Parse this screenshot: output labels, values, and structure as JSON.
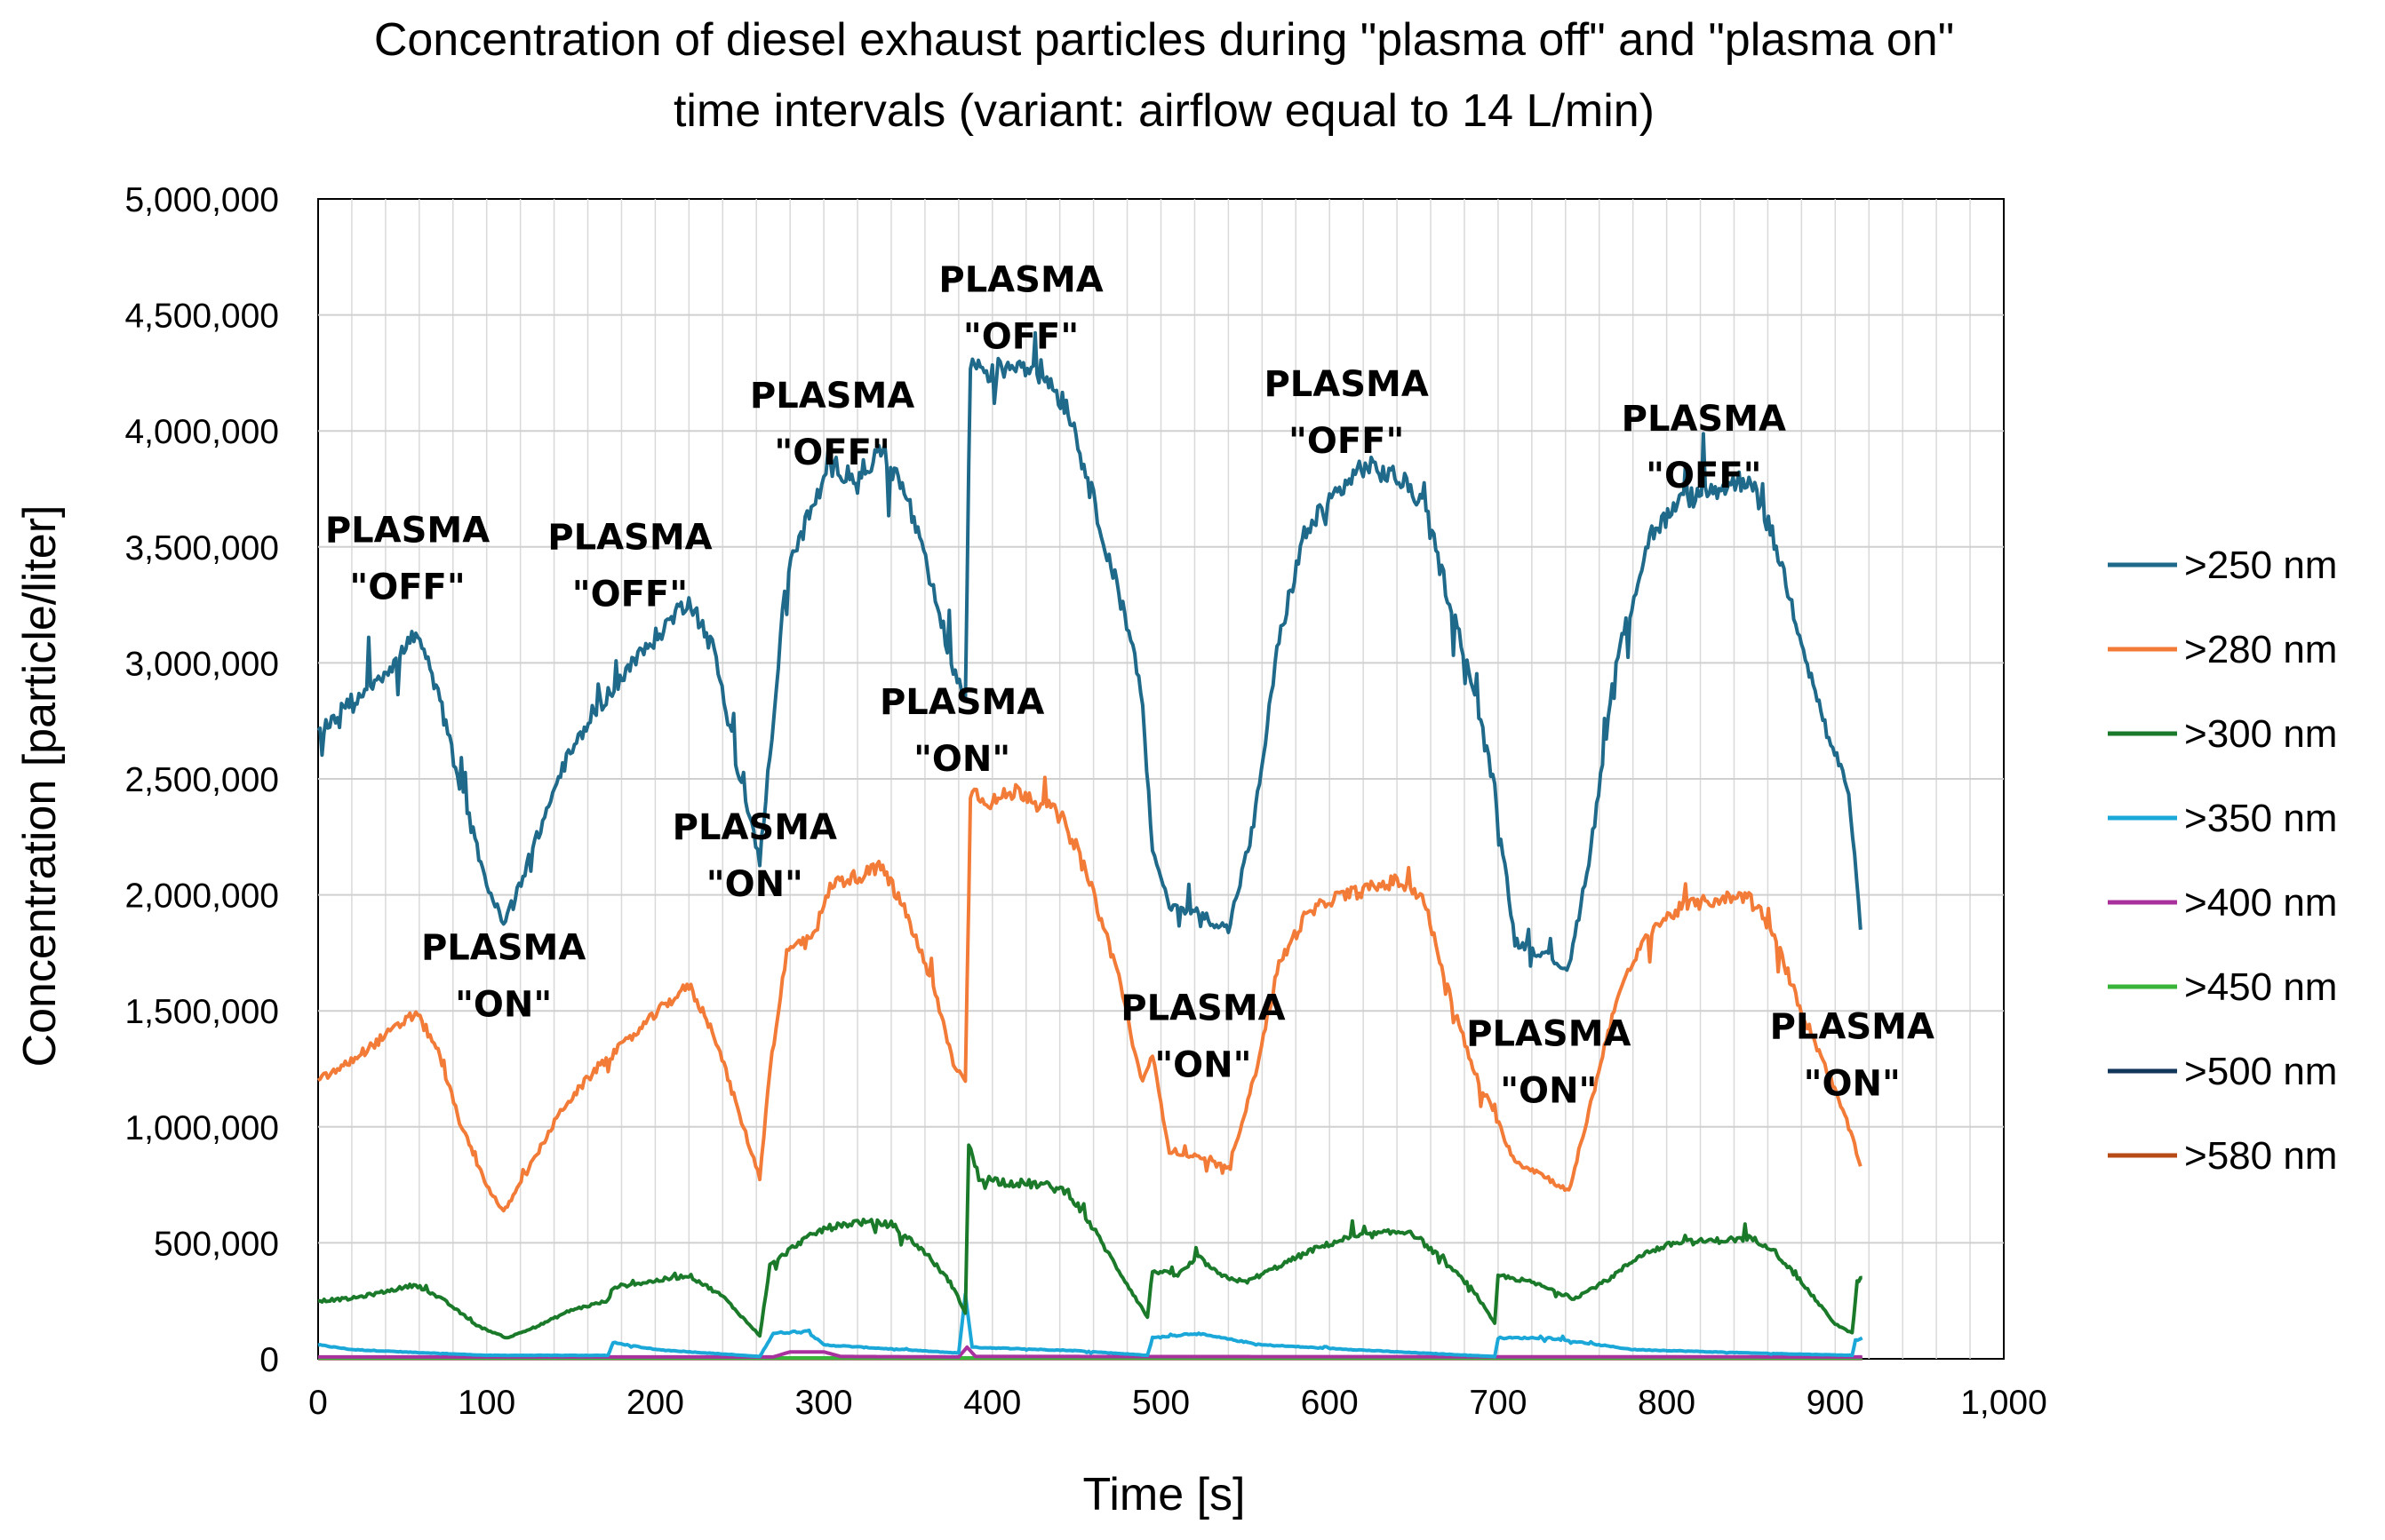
{
  "chart_data": {
    "type": "line",
    "title": "Concentration of diesel exhaust particles during \"plasma off\" and \"plasma on\" time intervals (variant: airflow equal to 14 L/min)",
    "title_lines": [
      "Concentration of diesel exhaust particles during \"plasma off\" and \"plasma on\"",
      "time intervals (variant: airflow equal to 14 L/min)"
    ],
    "xlabel": "Time [s]",
    "ylabel": "Concentration [particle/liter]",
    "xlim": [
      0,
      1000
    ],
    "ylim": [
      0,
      5000000
    ],
    "x_tick_labels": [
      "0",
      "100",
      "200",
      "300",
      "400",
      "500",
      "600",
      "700",
      "800",
      "900",
      "1,000"
    ],
    "x_ticks": [
      0,
      100,
      200,
      300,
      400,
      500,
      600,
      700,
      800,
      900,
      1000
    ],
    "y_tick_labels": [
      "0",
      "500,000",
      "1,000,000",
      "1,500,000",
      "2,000,000",
      "2,500,000",
      "3,000,000",
      "3,500,000",
      "4,000,000",
      "4,500,000",
      "5,000,000"
    ],
    "y_ticks": [
      0,
      500000,
      1000000,
      1500000,
      2000000,
      2500000,
      3000000,
      3500000,
      4000000,
      4500000,
      5000000
    ],
    "grid": true,
    "legend_position": "right",
    "series": [
      {
        "name": ">250 nm",
        "color": "#1f6a8a",
        "points": [
          [
            0,
            2700000
          ],
          [
            15,
            2800000
          ],
          [
            30,
            2900000
          ],
          [
            45,
            3000000
          ],
          [
            58,
            3130000
          ],
          [
            70,
            2900000
          ],
          [
            85,
            2450000
          ],
          [
            100,
            2050000
          ],
          [
            110,
            1870000
          ],
          [
            125,
            2150000
          ],
          [
            145,
            2550000
          ],
          [
            165,
            2800000
          ],
          [
            185,
            2980000
          ],
          [
            205,
            3150000
          ],
          [
            220,
            3280000
          ],
          [
            235,
            3050000
          ],
          [
            250,
            2500000
          ],
          [
            262,
            2150000
          ],
          [
            268,
            2600000
          ],
          [
            278,
            3400000
          ],
          [
            295,
            3700000
          ],
          [
            305,
            3850000
          ],
          [
            320,
            3800000
          ],
          [
            335,
            3920000
          ],
          [
            350,
            3700000
          ],
          [
            365,
            3300000
          ],
          [
            378,
            2950000
          ],
          [
            384,
            2850000
          ],
          [
            387,
            4300000
          ],
          [
            400,
            4250000
          ],
          [
            415,
            4300000
          ],
          [
            430,
            4250000
          ],
          [
            445,
            4100000
          ],
          [
            460,
            3700000
          ],
          [
            475,
            3300000
          ],
          [
            488,
            2900000
          ],
          [
            495,
            2200000
          ],
          [
            505,
            1950000
          ],
          [
            520,
            1930000
          ],
          [
            540,
            1850000
          ],
          [
            555,
            2300000
          ],
          [
            570,
            3100000
          ],
          [
            585,
            3550000
          ],
          [
            600,
            3700000
          ],
          [
            620,
            3850000
          ],
          [
            640,
            3800000
          ],
          [
            655,
            3700000
          ],
          [
            670,
            3300000
          ],
          [
            685,
            2900000
          ],
          [
            698,
            2450000
          ],
          [
            710,
            1800000
          ],
          [
            725,
            1750000
          ],
          [
            742,
            1680000
          ],
          [
            755,
            2200000
          ],
          [
            770,
            3000000
          ],
          [
            790,
            3550000
          ],
          [
            810,
            3700000
          ],
          [
            830,
            3750000
          ],
          [
            850,
            3800000
          ],
          [
            865,
            3500000
          ],
          [
            880,
            3100000
          ],
          [
            895,
            2700000
          ],
          [
            908,
            2450000
          ],
          [
            915,
            1850000
          ]
        ]
      },
      {
        "name": ">280 nm",
        "color": "#f37b38",
        "points": [
          [
            0,
            1200000
          ],
          [
            15,
            1260000
          ],
          [
            30,
            1340000
          ],
          [
            45,
            1420000
          ],
          [
            58,
            1490000
          ],
          [
            70,
            1350000
          ],
          [
            85,
            1000000
          ],
          [
            100,
            750000
          ],
          [
            110,
            630000
          ],
          [
            125,
            820000
          ],
          [
            145,
            1080000
          ],
          [
            165,
            1250000
          ],
          [
            185,
            1380000
          ],
          [
            205,
            1520000
          ],
          [
            220,
            1610000
          ],
          [
            235,
            1400000
          ],
          [
            250,
            1050000
          ],
          [
            262,
            780000
          ],
          [
            268,
            1250000
          ],
          [
            278,
            1750000
          ],
          [
            295,
            1850000
          ],
          [
            305,
            2050000
          ],
          [
            320,
            2080000
          ],
          [
            335,
            2120000
          ],
          [
            350,
            1900000
          ],
          [
            365,
            1600000
          ],
          [
            378,
            1250000
          ],
          [
            384,
            1200000
          ],
          [
            387,
            2450000
          ],
          [
            400,
            2400000
          ],
          [
            415,
            2450000
          ],
          [
            430,
            2400000
          ],
          [
            445,
            2300000
          ],
          [
            460,
            2000000
          ],
          [
            475,
            1650000
          ],
          [
            488,
            1200000
          ],
          [
            495,
            1300000
          ],
          [
            505,
            900000
          ],
          [
            520,
            870000
          ],
          [
            540,
            820000
          ],
          [
            555,
            1200000
          ],
          [
            570,
            1700000
          ],
          [
            585,
            1900000
          ],
          [
            600,
            1980000
          ],
          [
            620,
            2020000
          ],
          [
            640,
            2060000
          ],
          [
            655,
            2000000
          ],
          [
            670,
            1600000
          ],
          [
            685,
            1250000
          ],
          [
            698,
            1050000
          ],
          [
            710,
            850000
          ],
          [
            725,
            800000
          ],
          [
            742,
            720000
          ],
          [
            755,
            1100000
          ],
          [
            770,
            1550000
          ],
          [
            790,
            1850000
          ],
          [
            810,
            1950000
          ],
          [
            830,
            1980000
          ],
          [
            850,
            2000000
          ],
          [
            865,
            1800000
          ],
          [
            880,
            1500000
          ],
          [
            895,
            1250000
          ],
          [
            908,
            1000000
          ],
          [
            915,
            830000
          ]
        ]
      },
      {
        "name": ">300 nm",
        "color": "#1a7a2a",
        "points": [
          [
            0,
            250000
          ],
          [
            20,
            260000
          ],
          [
            40,
            290000
          ],
          [
            58,
            320000
          ],
          [
            75,
            250000
          ],
          [
            95,
            140000
          ],
          [
            112,
            90000
          ],
          [
            130,
            140000
          ],
          [
            150,
            210000
          ],
          [
            172,
            250000
          ],
          [
            175,
            310000
          ],
          [
            195,
            330000
          ],
          [
            220,
            360000
          ],
          [
            240,
            270000
          ],
          [
            258,
            130000
          ],
          [
            262,
            100000
          ],
          [
            268,
            400000
          ],
          [
            285,
            500000
          ],
          [
            300,
            560000
          ],
          [
            320,
            590000
          ],
          [
            340,
            580000
          ],
          [
            360,
            460000
          ],
          [
            375,
            330000
          ],
          [
            384,
            200000
          ],
          [
            386,
            920000
          ],
          [
            392,
            780000
          ],
          [
            410,
            760000
          ],
          [
            430,
            750000
          ],
          [
            445,
            720000
          ],
          [
            460,
            560000
          ],
          [
            475,
            380000
          ],
          [
            492,
            180000
          ],
          [
            495,
            380000
          ],
          [
            510,
            360000
          ],
          [
            522,
            440000
          ],
          [
            535,
            360000
          ],
          [
            550,
            330000
          ],
          [
            570,
            400000
          ],
          [
            590,
            470000
          ],
          [
            610,
            520000
          ],
          [
            630,
            540000
          ],
          [
            648,
            550000
          ],
          [
            665,
            440000
          ],
          [
            685,
            300000
          ],
          [
            698,
            150000
          ],
          [
            700,
            360000
          ],
          [
            720,
            330000
          ],
          [
            745,
            260000
          ],
          [
            765,
            340000
          ],
          [
            785,
            450000
          ],
          [
            805,
            500000
          ],
          [
            830,
            510000
          ],
          [
            850,
            520000
          ],
          [
            862,
            480000
          ],
          [
            880,
            330000
          ],
          [
            900,
            150000
          ],
          [
            910,
            110000
          ],
          [
            913,
            330000
          ],
          [
            916,
            350000
          ]
        ]
      },
      {
        "name": ">350 nm",
        "color": "#1ba8d9",
        "points": [
          [
            0,
            60000
          ],
          [
            20,
            40000
          ],
          [
            50,
            30000
          ],
          [
            100,
            15000
          ],
          [
            172,
            15000
          ],
          [
            175,
            70000
          ],
          [
            200,
            40000
          ],
          [
            262,
            10000
          ],
          [
            270,
            110000
          ],
          [
            290,
            120000
          ],
          [
            300,
            60000
          ],
          [
            380,
            25000
          ],
          [
            384,
            280000
          ],
          [
            388,
            50000
          ],
          [
            450,
            35000
          ],
          [
            492,
            15000
          ],
          [
            495,
            90000
          ],
          [
            520,
            110000
          ],
          [
            560,
            60000
          ],
          [
            640,
            30000
          ],
          [
            698,
            10000
          ],
          [
            700,
            90000
          ],
          [
            730,
            90000
          ],
          [
            780,
            40000
          ],
          [
            850,
            25000
          ],
          [
            910,
            15000
          ],
          [
            912,
            80000
          ],
          [
            916,
            90000
          ]
        ]
      },
      {
        "name": ">400 nm",
        "color": "#a8319e",
        "points": [
          [
            0,
            8000
          ],
          [
            270,
            8000
          ],
          [
            280,
            30000
          ],
          [
            300,
            30000
          ],
          [
            310,
            10000
          ],
          [
            380,
            8000
          ],
          [
            385,
            50000
          ],
          [
            390,
            10000
          ],
          [
            916,
            8000
          ]
        ]
      },
      {
        "name": ">450 nm",
        "color": "#38b538",
        "points": [
          [
            0,
            4000
          ],
          [
            916,
            4000
          ]
        ]
      },
      {
        "name": ">500 nm",
        "color": "#12355a",
        "points": [
          [
            0,
            2500
          ],
          [
            916,
            2500
          ]
        ]
      },
      {
        "name": ">580 nm",
        "color": "#b84a15",
        "points": [
          [
            0,
            1500
          ],
          [
            916,
            1500
          ]
        ]
      }
    ],
    "annotations": [
      {
        "line1": "PLASMA",
        "line2": "\"OFF\"",
        "x": 53,
        "y": 3520000
      },
      {
        "line1": "PLASMA",
        "line2": "\"OFF\"",
        "x": 185,
        "y": 3490000
      },
      {
        "line1": "PLASMA",
        "line2": "\"OFF\"",
        "x": 305,
        "y": 4100000
      },
      {
        "line1": "PLASMA",
        "line2": "\"OFF\"",
        "x": 417,
        "y": 4600000
      },
      {
        "line1": "PLASMA",
        "line2": "\"OFF\"",
        "x": 610,
        "y": 4150000
      },
      {
        "line1": "PLASMA",
        "line2": "\"OFF\"",
        "x": 822,
        "y": 4000000
      },
      {
        "line1": "PLASMA",
        "line2": "\"ON\"",
        "x": 110,
        "y": 1720000
      },
      {
        "line1": "PLASMA",
        "line2": "\"ON\"",
        "x": 259,
        "y": 2240000
      },
      {
        "line1": "PLASMA",
        "line2": "\"ON\"",
        "x": 382,
        "y": 2780000
      },
      {
        "line1": "PLASMA",
        "line2": "\"ON\"",
        "x": 525,
        "y": 1460000
      },
      {
        "line1": "PLASMA",
        "line2": "\"ON\"",
        "x": 730,
        "y": 1350000
      },
      {
        "line1": "PLASMA",
        "line2": "\"ON\"",
        "x": 910,
        "y": 1380000
      }
    ]
  }
}
